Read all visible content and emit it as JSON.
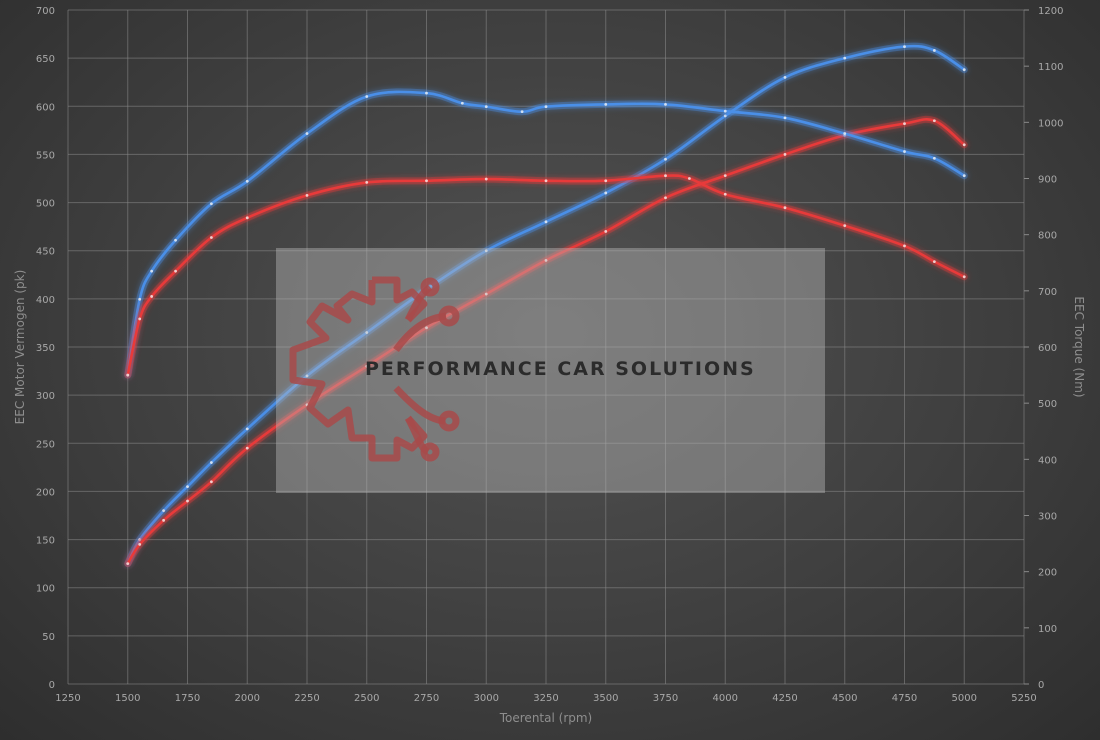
{
  "chart_data": {
    "type": "line",
    "xlabel": "Toerental (rpm)",
    "ylabel_left": "EEC Motor Vermogen (pk)",
    "ylabel_right": "EEC Torque (Nm)",
    "xlim": [
      1250,
      5250
    ],
    "ylim_left": [
      0,
      700
    ],
    "ylim_right": [
      0,
      1200
    ],
    "x_ticks": [
      1250,
      1500,
      1750,
      2000,
      2250,
      2500,
      2750,
      3000,
      3250,
      3500,
      3750,
      4000,
      4250,
      4500,
      4750,
      5000,
      5250
    ],
    "y_ticks_left": [
      0,
      50,
      100,
      150,
      200,
      250,
      300,
      350,
      400,
      450,
      500,
      550,
      600,
      650,
      700
    ],
    "y_ticks_right": [
      0,
      100,
      200,
      300,
      400,
      500,
      600,
      700,
      800,
      900,
      1000,
      1100,
      1200
    ],
    "grid": true,
    "series": [
      {
        "axis": "left",
        "color": "#4a8fe8",
        "x": [
          1500,
          1550,
          1650,
          1750,
          1850,
          2000,
          2250,
          2500,
          2750,
          3000,
          3250,
          3500,
          3750,
          4000,
          4250,
          4500,
          4750,
          4875,
          5000
        ],
        "values": [
          125,
          150,
          180,
          205,
          230,
          265,
          320,
          365,
          410,
          450,
          480,
          510,
          545,
          590,
          630,
          650,
          662,
          658,
          638
        ]
      },
      {
        "axis": "left",
        "color": "#e83a3a",
        "x": [
          1500,
          1550,
          1650,
          1750,
          1850,
          2000,
          2250,
          2500,
          2750,
          3000,
          3250,
          3500,
          3750,
          4000,
          4250,
          4500,
          4750,
          4875,
          5000
        ],
        "values": [
          125,
          145,
          170,
          190,
          210,
          245,
          290,
          330,
          370,
          405,
          440,
          470,
          505,
          528,
          550,
          570,
          582,
          585,
          560
        ]
      },
      {
        "axis": "right",
        "color": "#4a8fe8",
        "x": [
          1500,
          1550,
          1600,
          1700,
          1850,
          2000,
          2250,
          2500,
          2750,
          2900,
          3000,
          3150,
          3250,
          3500,
          3750,
          4000,
          4250,
          4500,
          4750,
          4875,
          5000
        ],
        "values": [
          550,
          685,
          735,
          790,
          855,
          895,
          980,
          1046,
          1052,
          1034,
          1028,
          1019,
          1028,
          1032,
          1032,
          1020,
          1008,
          980,
          948,
          936,
          905
        ]
      },
      {
        "axis": "right",
        "color": "#e83a3a",
        "x": [
          1500,
          1550,
          1600,
          1700,
          1850,
          2000,
          2250,
          2500,
          2750,
          3000,
          3250,
          3500,
          3750,
          3850,
          4000,
          4250,
          4500,
          4750,
          4875,
          5000
        ],
        "values": [
          550,
          650,
          690,
          735,
          795,
          830,
          870,
          893,
          896,
          899,
          896,
          896,
          905,
          900,
          872,
          848,
          816,
          780,
          752,
          725
        ]
      }
    ]
  },
  "watermark": {
    "text": "PERFORMANCE CAR SOLUTIONS"
  }
}
